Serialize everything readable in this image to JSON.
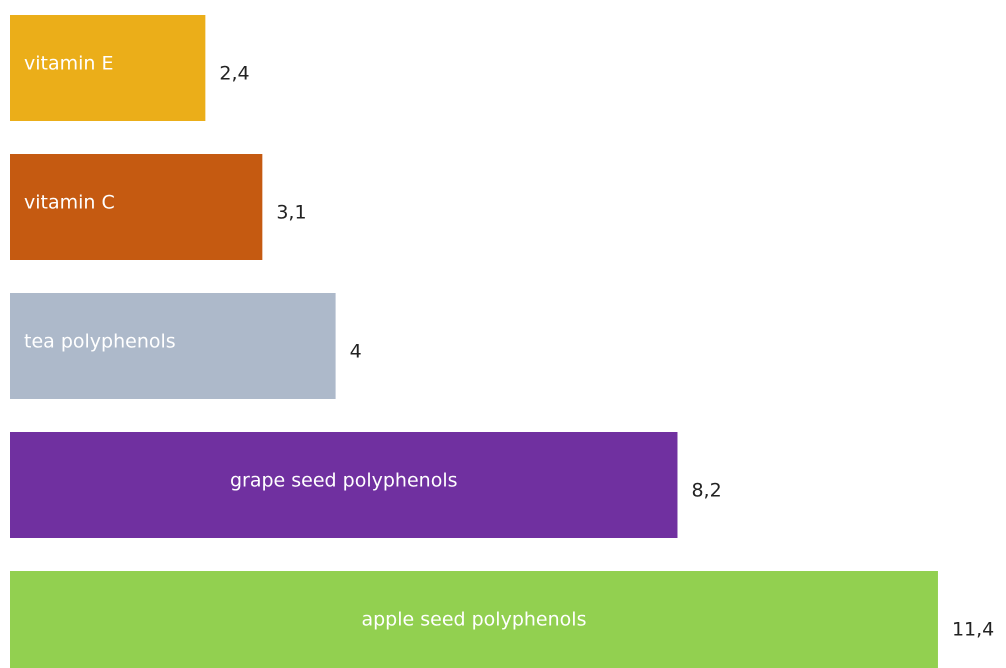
{
  "chart_data": {
    "type": "bar",
    "orientation": "horizontal",
    "categories": [
      "vitamin E",
      "vitamin C",
      "tea polyphenols",
      "grape seed polyphenols",
      "apple seed polyphenols"
    ],
    "values": [
      2.4,
      3.1,
      4,
      8.2,
      11.4
    ],
    "value_labels": [
      "2,4",
      "3,1",
      "4",
      "8,2",
      "11,4"
    ],
    "colors": [
      "#EBAE19",
      "#C55A11",
      "#ADB9CA",
      "#7030A0",
      "#92D050"
    ],
    "title": "",
    "xlabel": "",
    "ylabel": "",
    "grid": false,
    "legend": "none"
  }
}
